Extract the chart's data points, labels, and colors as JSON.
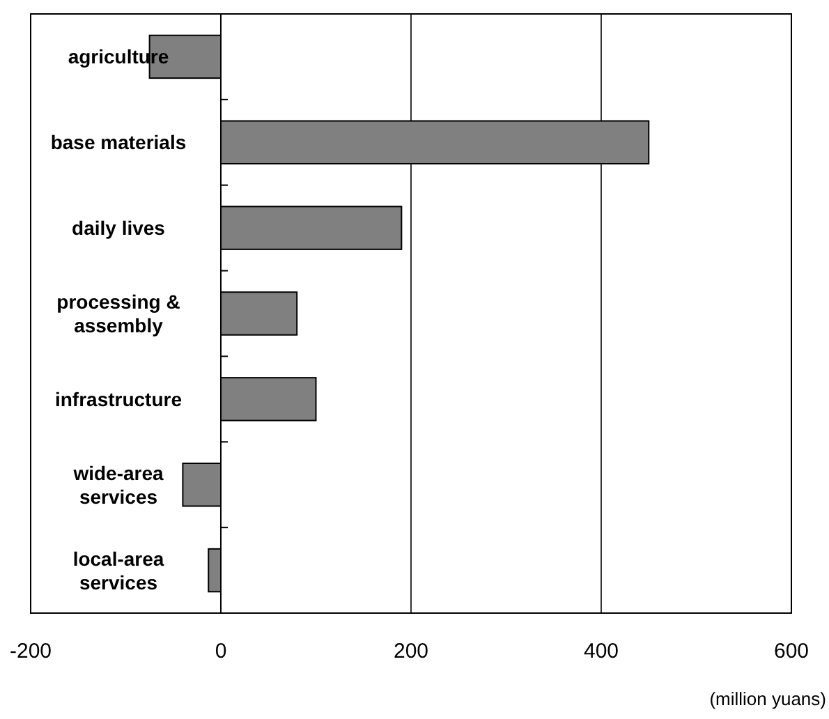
{
  "chart_data": {
    "type": "bar",
    "orientation": "horizontal",
    "categories": [
      "agriculture",
      "base materials",
      "daily lives",
      "processing & assembly",
      "infrastructure",
      "wide-area services",
      "local-area services"
    ],
    "values": [
      -75,
      450,
      190,
      80,
      100,
      -40,
      -13
    ],
    "color": "#808080",
    "xlim": [
      -200,
      600
    ],
    "xticks": [
      -200,
      0,
      200,
      400,
      600
    ],
    "grid": "x",
    "xlabel": "(million yuans)"
  }
}
